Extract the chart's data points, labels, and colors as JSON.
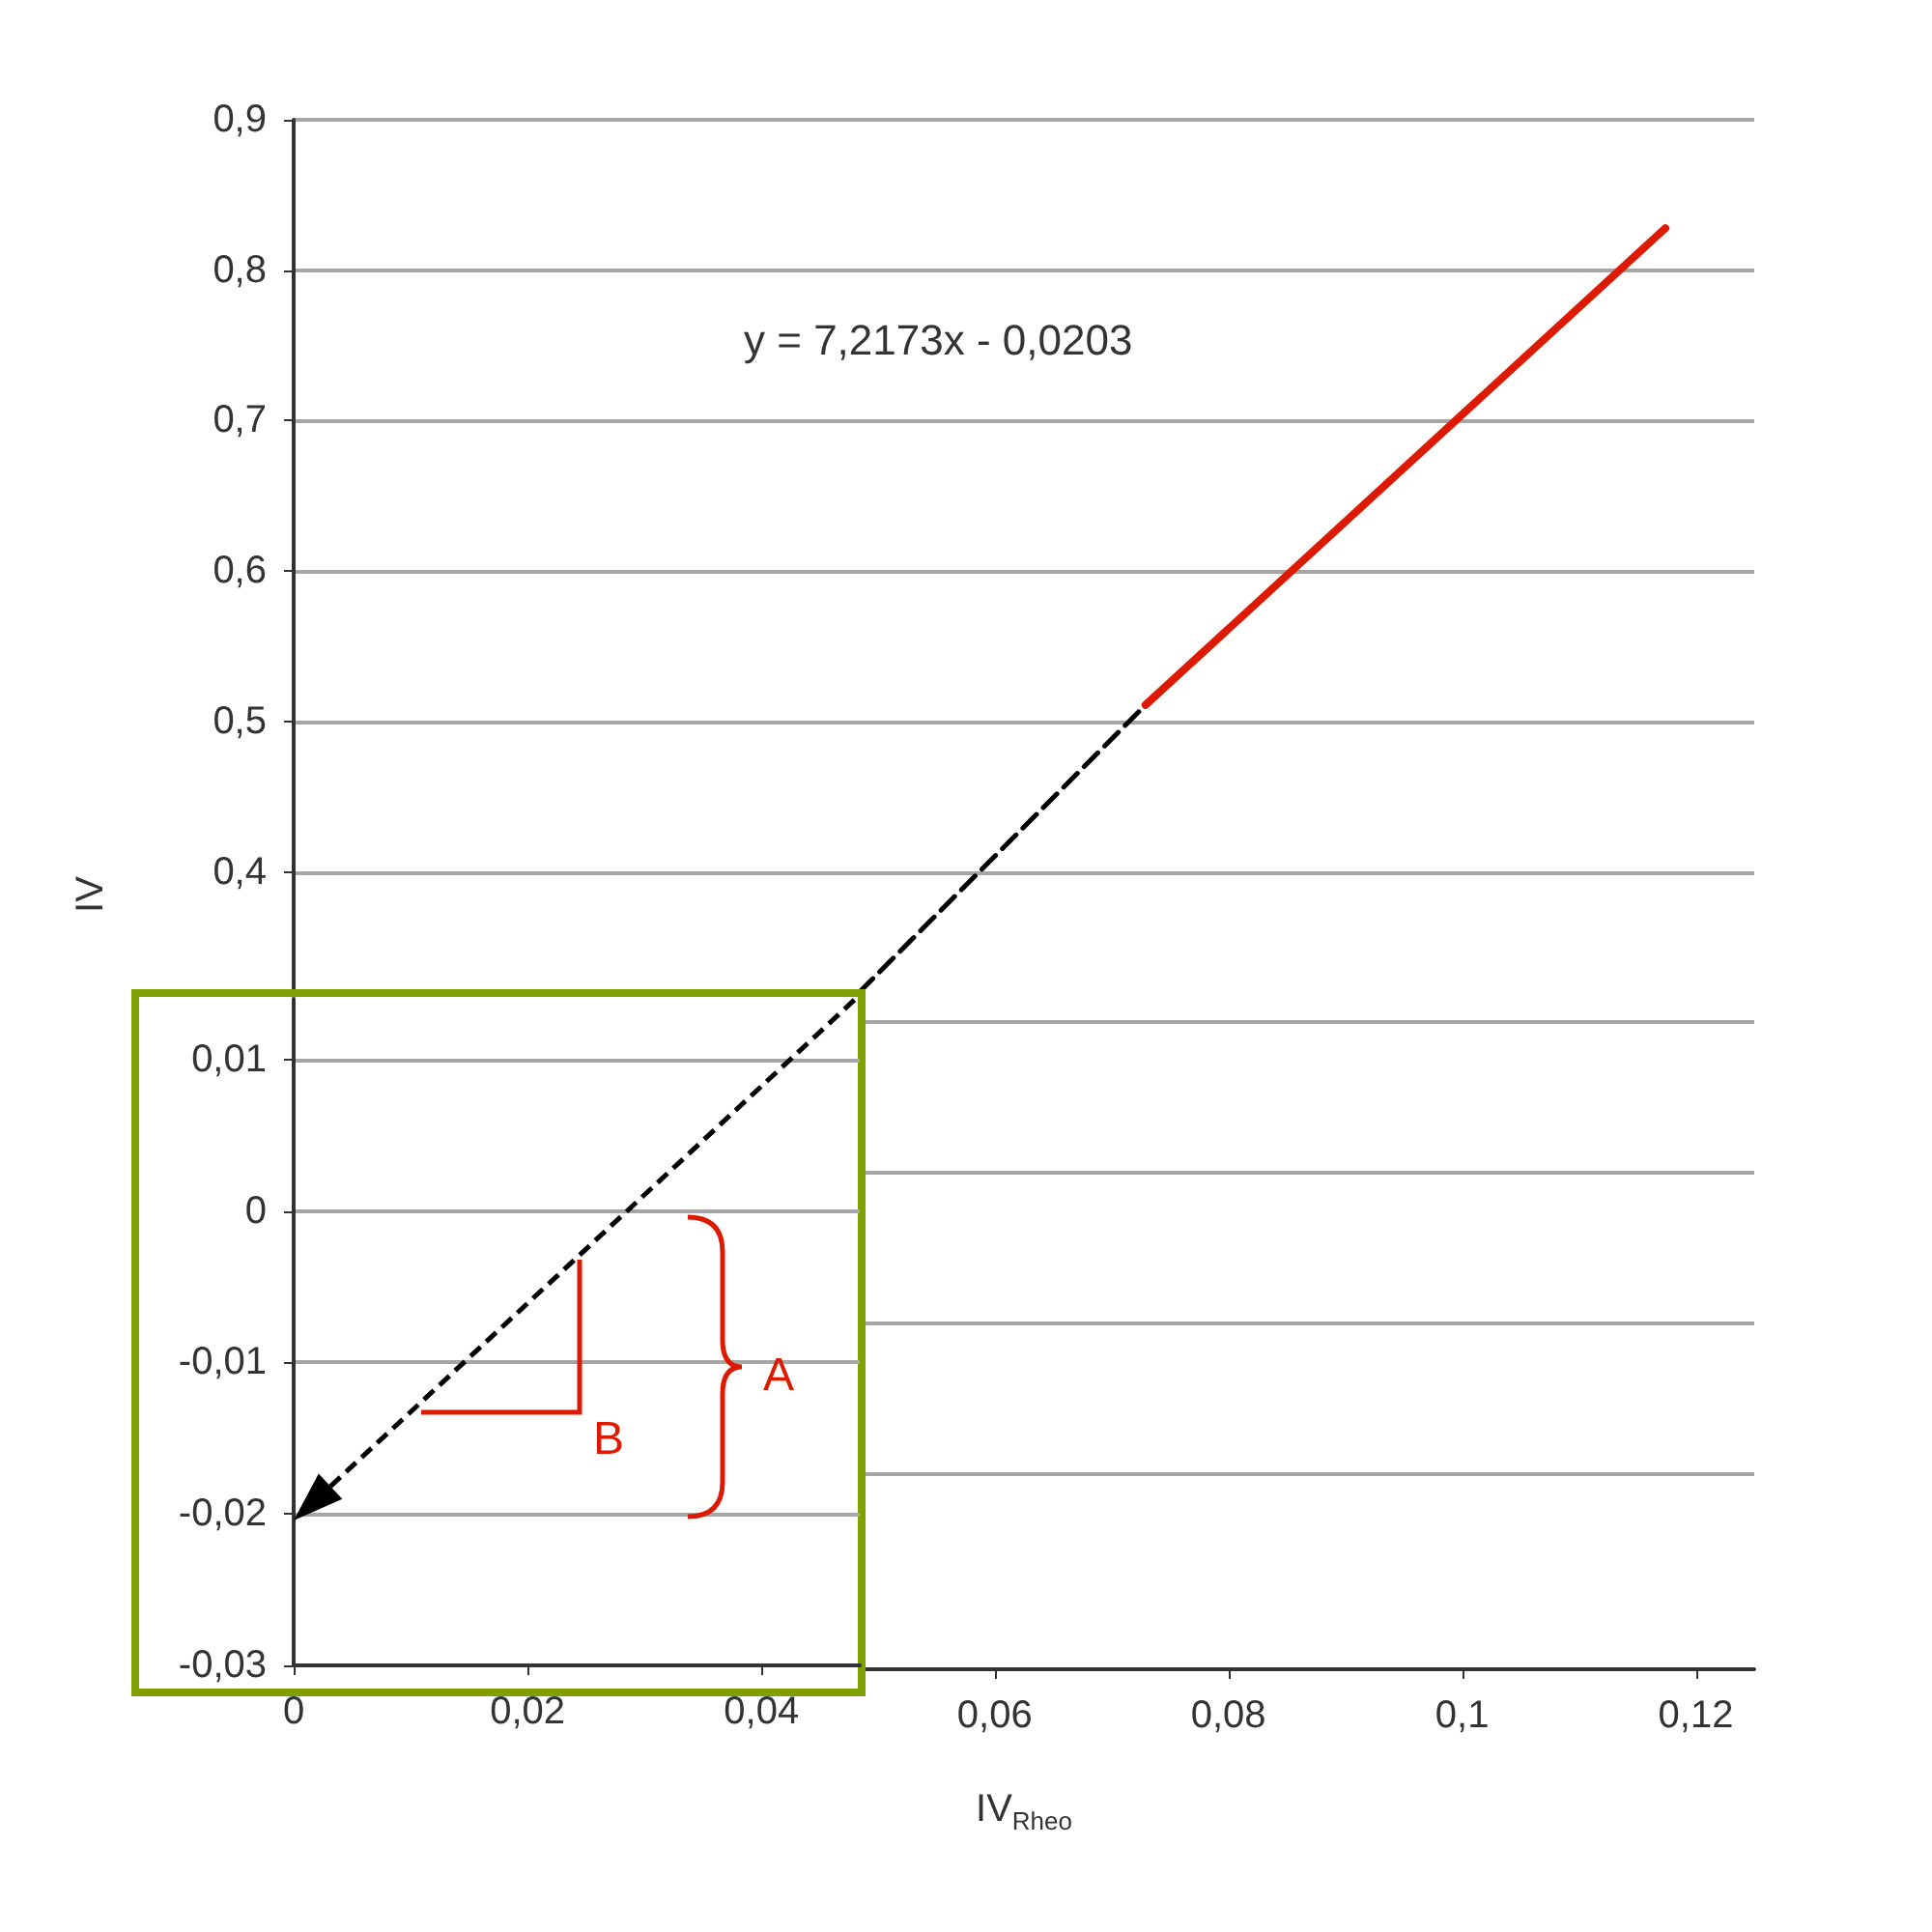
{
  "chart_data": [
    {
      "type": "line",
      "xlabel": "IV$_{Rheo}$",
      "ylabel": "IV",
      "annotations": [
        "y = 7,2173x - 0,0203"
      ],
      "xlim": [
        0,
        0.125
      ],
      "xticks": [
        {
          "value": 0.06,
          "label": "0,06"
        },
        {
          "value": 0.08,
          "label": "0,08"
        },
        {
          "value": 0.1,
          "label": "0,1"
        },
        {
          "value": 0.12,
          "label": "0,12"
        }
      ],
      "ylim": [
        -0.13,
        0.9
      ],
      "yticks": [
        {
          "value": 0,
          "label": null
        },
        {
          "value": 0.1,
          "label": null
        },
        {
          "value": 0.2,
          "label": null
        },
        {
          "value": 0.3,
          "label": null
        },
        {
          "value": 0.4,
          "label": "0,4"
        },
        {
          "value": 0.5,
          "label": "0,5"
        },
        {
          "value": 0.6,
          "label": "0,6"
        },
        {
          "value": 0.7,
          "label": "0,7"
        },
        {
          "value": 0.8,
          "label": "0,8"
        },
        {
          "value": 0.9,
          "label": "0,9"
        }
      ],
      "grid": "y",
      "marker": "none",
      "series": [
        {
          "color": "#000000",
          "line_style": "dashed",
          "x": [
            0.0484,
            0.0729
          ],
          "values": [
            0.32,
            0.511
          ]
        },
        {
          "color": "#dd1a00",
          "line_style": "solid",
          "x": [
            0.0729,
            0.1174
          ],
          "values": [
            0.511,
            0.828
          ]
        }
      ]
    },
    {
      "type": "line",
      "annotations": [
        "A",
        "B"
      ],
      "xlim": [
        0,
        0.0484
      ],
      "xticks": [
        0,
        {
          "value": 0.02,
          "label": "0,02"
        },
        {
          "value": 0.04,
          "label": "0,04"
        }
      ],
      "ylim": [
        -0.03,
        0.014
      ],
      "yticks": [
        {
          "value": -0.03,
          "label": "-0,03"
        },
        {
          "value": -0.02,
          "label": "-0,02"
        },
        {
          "value": -0.01,
          "label": "-0,01"
        },
        0,
        {
          "value": 0.01,
          "label": "0,01"
        }
      ],
      "grid": "y"
    }
  ]
}
